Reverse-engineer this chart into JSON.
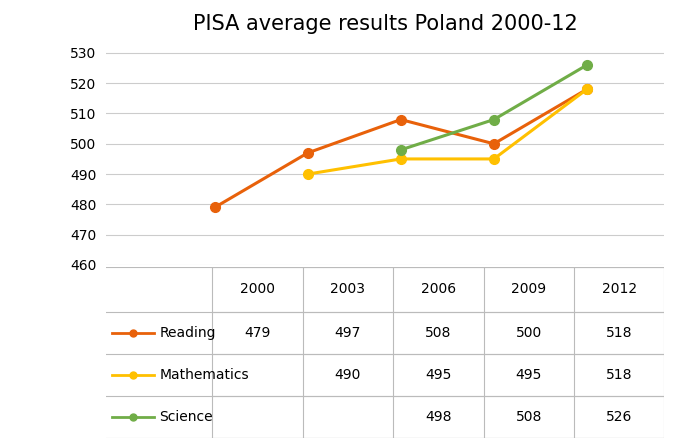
{
  "title": "PISA average results Poland 2000-12",
  "reading": {
    "years": [
      2000,
      2003,
      2006,
      2009,
      2012
    ],
    "values": [
      479,
      497,
      508,
      500,
      518
    ],
    "color": "#E8610A",
    "label": "Reading"
  },
  "mathematics": {
    "years": [
      2003,
      2006,
      2009,
      2012
    ],
    "values": [
      490,
      495,
      495,
      518
    ],
    "color": "#FFC000",
    "label": "Mathematics"
  },
  "science": {
    "years": [
      2006,
      2009,
      2012
    ],
    "values": [
      498,
      508,
      526
    ],
    "color": "#70AD47",
    "label": "Science"
  },
  "ylim": [
    460,
    533
  ],
  "yticks": [
    460,
    470,
    480,
    490,
    500,
    510,
    520,
    530
  ],
  "xlim": [
    1996.5,
    2014.5
  ],
  "xticks": [
    2000,
    2003,
    2006,
    2009,
    2012
  ],
  "table_years": [
    "2000",
    "2003",
    "2006",
    "2009",
    "2012"
  ],
  "table_data": {
    "Reading": [
      "479",
      "497",
      "508",
      "500",
      "518"
    ],
    "Mathematics": [
      "",
      "490",
      "495",
      "495",
      "518"
    ],
    "Science": [
      "",
      "",
      "498",
      "508",
      "526"
    ]
  },
  "row_order": [
    "Reading",
    "Mathematics",
    "Science"
  ],
  "row_colors": {
    "Reading": "#E8610A",
    "Mathematics": "#FFC000",
    "Science": "#70AD47"
  },
  "marker": "o",
  "markersize": 7,
  "linewidth": 2.2,
  "background_color": "#ffffff",
  "grid_color": "#cccccc",
  "title_fontsize": 15,
  "tick_fontsize": 10,
  "table_fontsize": 10,
  "table_border_color": "#bbbbbb"
}
